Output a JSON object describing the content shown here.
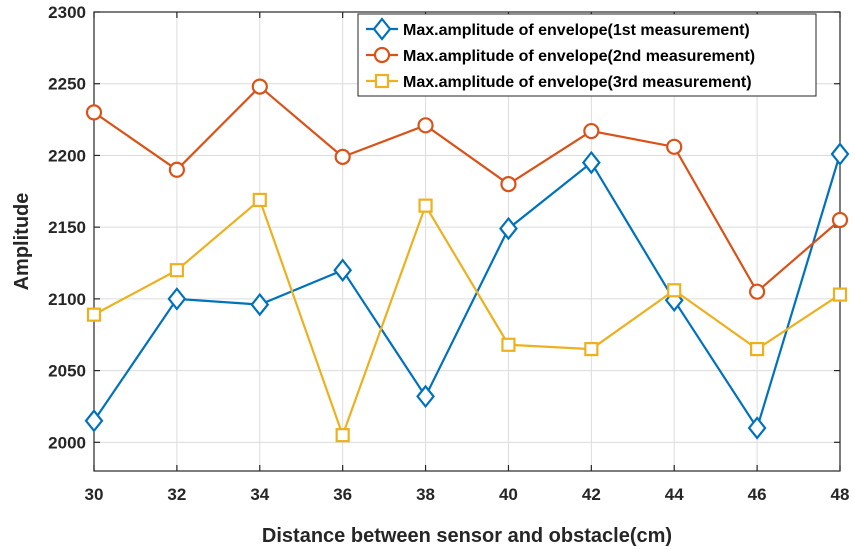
{
  "chart_data": {
    "type": "line",
    "title": "",
    "xlabel": "Distance between sensor and obstacle(cm)",
    "ylabel": "Amplitude",
    "x": [
      30,
      32,
      34,
      36,
      38,
      40,
      42,
      44,
      46,
      48
    ],
    "xlim": [
      30,
      48
    ],
    "ylim": [
      1980,
      2300
    ],
    "xticks": [
      "30",
      "32",
      "34",
      "36",
      "38",
      "40",
      "42",
      "44",
      "46",
      "48"
    ],
    "yticks": [
      "2000",
      "2050",
      "2100",
      "2150",
      "2200",
      "2250",
      "2300"
    ],
    "grid": true,
    "legend_position": "top-right",
    "series": [
      {
        "name": "Max.amplitude of envelope(1st measurement)",
        "values": [
          2015,
          2100,
          2096,
          2120,
          2032,
          2149,
          2195,
          2099,
          2010,
          2201
        ],
        "color": "#0072BD",
        "marker": "diamond"
      },
      {
        "name": "Max.amplitude of envelope(2nd measurement)",
        "values": [
          2230,
          2190,
          2248,
          2199,
          2221,
          2180,
          2217,
          2206,
          2105,
          2155
        ],
        "color": "#D95319",
        "marker": "circle"
      },
      {
        "name": "Max.amplitude of envelope(3rd measurement)",
        "values": [
          2089,
          2120,
          2169,
          2005,
          2165,
          2068,
          2065,
          2106,
          2065,
          2103
        ],
        "color": "#EDB120",
        "marker": "square"
      }
    ]
  }
}
